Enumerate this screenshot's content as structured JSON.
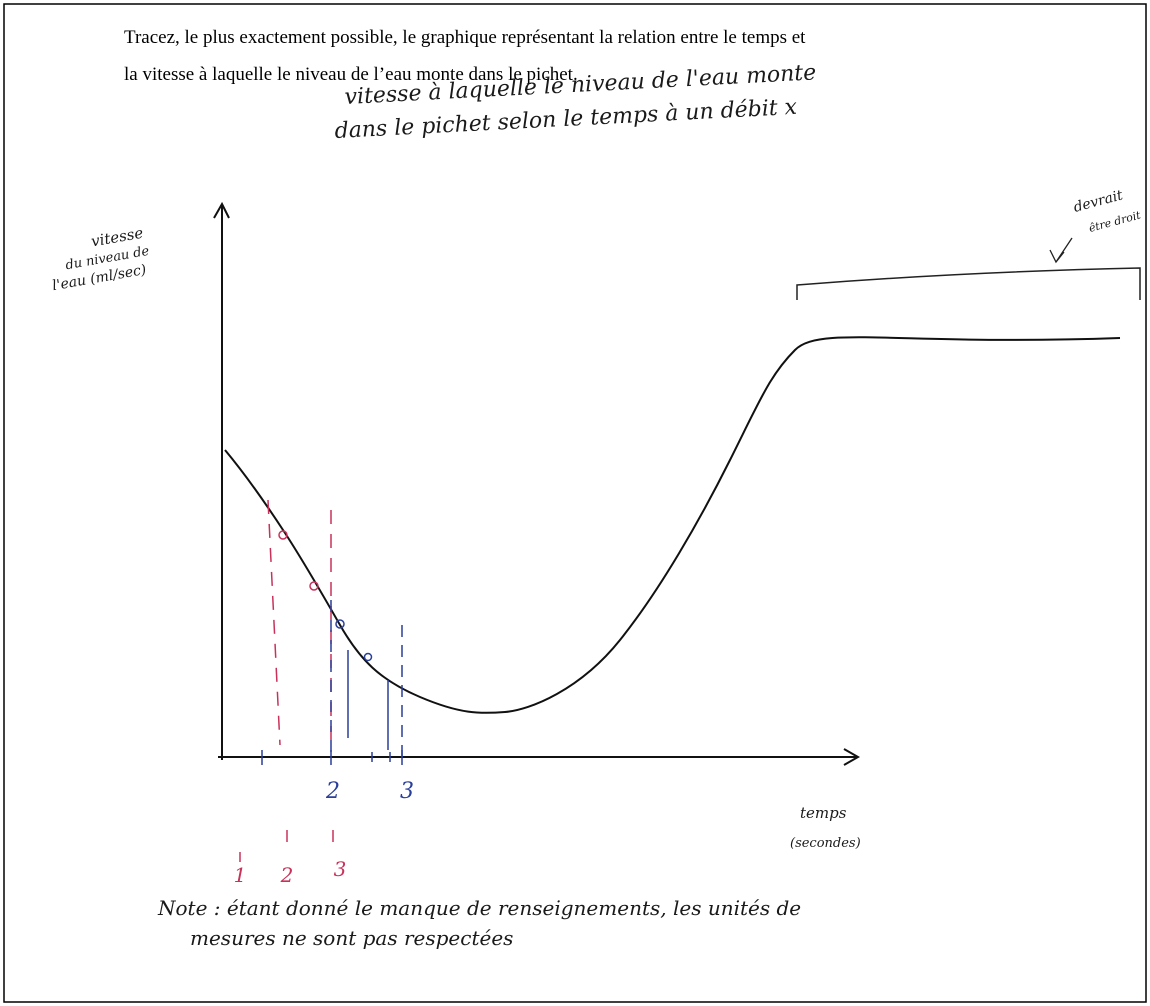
{
  "instructions": {
    "lines": [
      "Tracez, le plus exactement possible, le graphique représentant la relation entre le temps et",
      "la vitesse à laquelle le niveau de l’eau monte dans le pichet."
    ]
  },
  "graph": {
    "title_lines": [
      "vitesse à laquelle le niveau de l'eau monte",
      "dans le pichet selon le temps à un débit x"
    ],
    "y_label": [
      "vitesse",
      "du niveau de",
      "l'eau (ml/sec)"
    ],
    "x_label": [
      "temps",
      "(secondes)"
    ],
    "side_note": [
      "devrait",
      "être droit"
    ],
    "blue_ticks": [
      "2",
      "3"
    ],
    "red_ticks": [
      "1",
      "2",
      "3"
    ]
  },
  "note": {
    "lines": [
      "Note : étant donné le manque de renseignements, les unités de",
      "mesures ne sont pas respectées"
    ]
  }
}
